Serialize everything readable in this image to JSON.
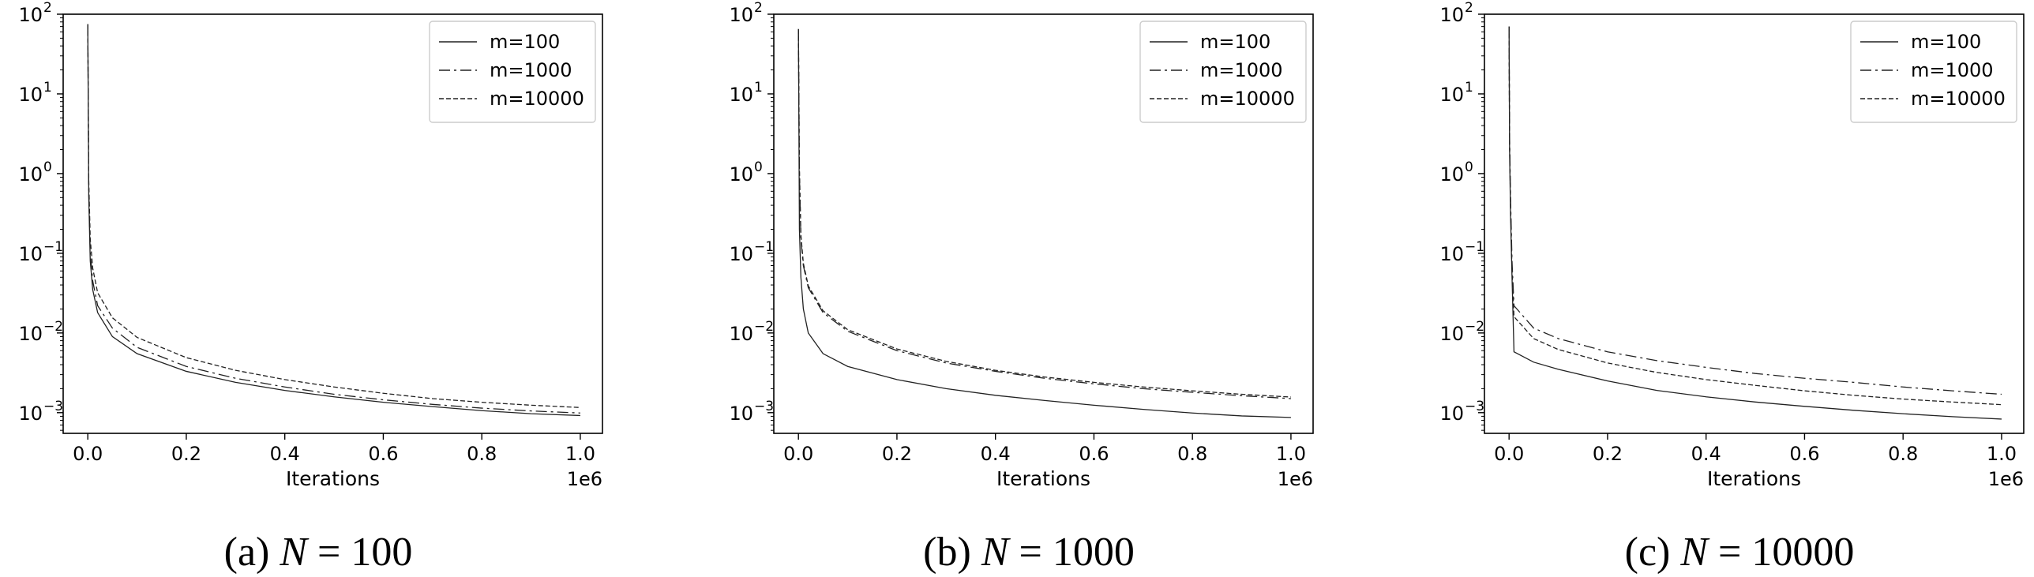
{
  "chart_data": [
    {
      "type": "line",
      "caption": {
        "prefix": "(a) ",
        "var": "N",
        "rest": " = 100"
      },
      "xlabel": "Iterations",
      "x_offset_label": "1e6",
      "yscale": "log",
      "xlim": [
        -0.05,
        1.045
      ],
      "ylim": [
        0.00055,
        100
      ],
      "xticks": [
        0.0,
        0.2,
        0.4,
        0.6,
        0.8,
        1.0
      ],
      "xtick_labels": [
        "0.0",
        "0.2",
        "0.4",
        "0.6",
        "0.8",
        "1.0"
      ],
      "ytick_exponents": [
        "2",
        "1",
        "0",
        "−1",
        "−2",
        "−3"
      ],
      "ytick_values": [
        100,
        10,
        1,
        0.1,
        0.01,
        0.001
      ],
      "legend_position": "top-right",
      "series": [
        {
          "name": "m=100",
          "style": "solid",
          "peak": 75,
          "points": [
            [
              0.0,
              75
            ],
            [
              0.002,
              0.5
            ],
            [
              0.005,
              0.08
            ],
            [
              0.01,
              0.035
            ],
            [
              0.02,
              0.018
            ],
            [
              0.05,
              0.009
            ],
            [
              0.1,
              0.0055
            ],
            [
              0.2,
              0.0033
            ],
            [
              0.3,
              0.0024
            ],
            [
              0.4,
              0.0019
            ],
            [
              0.5,
              0.00158
            ],
            [
              0.6,
              0.00135
            ],
            [
              0.7,
              0.00119
            ],
            [
              0.8,
              0.00106
            ],
            [
              0.9,
              0.00097
            ],
            [
              1.0,
              0.00092
            ]
          ]
        },
        {
          "name": "m=1000",
          "style": "dashdot",
          "peak": 75,
          "points": [
            [
              0.0,
              75
            ],
            [
              0.002,
              0.6
            ],
            [
              0.005,
              0.1
            ],
            [
              0.01,
              0.045
            ],
            [
              0.02,
              0.022
            ],
            [
              0.05,
              0.0115
            ],
            [
              0.1,
              0.0066
            ],
            [
              0.2,
              0.0038
            ],
            [
              0.3,
              0.0027
            ],
            [
              0.4,
              0.0021
            ],
            [
              0.5,
              0.0017
            ],
            [
              0.6,
              0.00145
            ],
            [
              0.7,
              0.00127
            ],
            [
              0.8,
              0.00114
            ],
            [
              0.9,
              0.00105
            ],
            [
              1.0,
              0.00099
            ]
          ]
        },
        {
          "name": "m=10000",
          "style": "dashed",
          "peak": 75,
          "points": [
            [
              0.0,
              75
            ],
            [
              0.002,
              0.8
            ],
            [
              0.005,
              0.15
            ],
            [
              0.01,
              0.065
            ],
            [
              0.02,
              0.032
            ],
            [
              0.05,
              0.0155
            ],
            [
              0.1,
              0.0088
            ],
            [
              0.2,
              0.0049
            ],
            [
              0.3,
              0.0034
            ],
            [
              0.4,
              0.0026
            ],
            [
              0.5,
              0.0021
            ],
            [
              0.6,
              0.00175
            ],
            [
              0.7,
              0.0015
            ],
            [
              0.8,
              0.00135
            ],
            [
              0.9,
              0.00124
            ],
            [
              1.0,
              0.00116
            ]
          ]
        }
      ]
    },
    {
      "type": "line",
      "caption": {
        "prefix": "(b) ",
        "var": "N",
        "rest": " = 1000"
      },
      "xlabel": "Iterations",
      "x_offset_label": "1e6",
      "yscale": "log",
      "xlim": [
        -0.05,
        1.045
      ],
      "ylim": [
        0.00055,
        100
      ],
      "xticks": [
        0.0,
        0.2,
        0.4,
        0.6,
        0.8,
        1.0
      ],
      "xtick_labels": [
        "0.0",
        "0.2",
        "0.4",
        "0.6",
        "0.8",
        "1.0"
      ],
      "ytick_exponents": [
        "2",
        "1",
        "0",
        "−1",
        "−2",
        "−3"
      ],
      "ytick_values": [
        100,
        10,
        1,
        0.1,
        0.01,
        0.001
      ],
      "legend_position": "top-right",
      "series": [
        {
          "name": "m=100",
          "style": "solid",
          "peak": 65,
          "points": [
            [
              0.0,
              65
            ],
            [
              0.002,
              0.2
            ],
            [
              0.005,
              0.05
            ],
            [
              0.01,
              0.02
            ],
            [
              0.02,
              0.01
            ],
            [
              0.05,
              0.0055
            ],
            [
              0.1,
              0.0038
            ],
            [
              0.2,
              0.0026
            ],
            [
              0.3,
              0.002
            ],
            [
              0.4,
              0.00165
            ],
            [
              0.5,
              0.00142
            ],
            [
              0.6,
              0.00124
            ],
            [
              0.7,
              0.0011
            ],
            [
              0.8,
              0.00099
            ],
            [
              0.9,
              0.00091
            ],
            [
              1.0,
              0.00087
            ]
          ]
        },
        {
          "name": "m=1000",
          "style": "dashdot",
          "peak": 65,
          "points": [
            [
              0.0,
              65
            ],
            [
              0.002,
              1.0
            ],
            [
              0.005,
              0.15
            ],
            [
              0.01,
              0.07
            ],
            [
              0.02,
              0.037
            ],
            [
              0.05,
              0.018
            ],
            [
              0.1,
              0.0105
            ],
            [
              0.2,
              0.006
            ],
            [
              0.3,
              0.0042
            ],
            [
              0.4,
              0.0033
            ],
            [
              0.5,
              0.0027
            ],
            [
              0.6,
              0.0023
            ],
            [
              0.7,
              0.002
            ],
            [
              0.8,
              0.0018
            ],
            [
              0.9,
              0.00163
            ],
            [
              1.0,
              0.0015
            ]
          ]
        },
        {
          "name": "m=10000",
          "style": "dashed",
          "peak": 65,
          "points": [
            [
              0.0,
              65
            ],
            [
              0.002,
              1.2
            ],
            [
              0.005,
              0.17
            ],
            [
              0.01,
              0.075
            ],
            [
              0.02,
              0.039
            ],
            [
              0.05,
              0.019
            ],
            [
              0.1,
              0.011
            ],
            [
              0.2,
              0.0063
            ],
            [
              0.3,
              0.0044
            ],
            [
              0.4,
              0.0034
            ],
            [
              0.5,
              0.0028
            ],
            [
              0.6,
              0.0024
            ],
            [
              0.7,
              0.0021
            ],
            [
              0.8,
              0.00188
            ],
            [
              0.9,
              0.0017
            ],
            [
              1.0,
              0.00157
            ]
          ]
        }
      ]
    },
    {
      "type": "line",
      "caption": {
        "prefix": "(c) ",
        "var": "N",
        "rest": " = 10000"
      },
      "xlabel": "Iterations",
      "x_offset_label": "1e6",
      "yscale": "log",
      "xlim": [
        -0.05,
        1.045
      ],
      "ylim": [
        0.00055,
        100
      ],
      "xticks": [
        0.0,
        0.2,
        0.4,
        0.6,
        0.8,
        1.0
      ],
      "xtick_labels": [
        "0.0",
        "0.2",
        "0.4",
        "0.6",
        "0.8",
        "1.0"
      ],
      "ytick_exponents": [
        "2",
        "1",
        "0",
        "−1",
        "−2",
        "−3"
      ],
      "ytick_values": [
        100,
        10,
        1,
        0.1,
        0.01,
        0.001
      ],
      "legend_position": "top-right",
      "series": [
        {
          "name": "m=100",
          "style": "solid",
          "peak": 70,
          "points": [
            [
              0.0,
              70
            ],
            [
              0.001,
              2.0
            ],
            [
              0.003,
              0.3
            ],
            [
              0.006,
              0.05
            ],
            [
              0.01,
              0.0058
            ],
            [
              0.05,
              0.0043
            ],
            [
              0.1,
              0.0035
            ],
            [
              0.2,
              0.0025
            ],
            [
              0.3,
              0.0019
            ],
            [
              0.4,
              0.00158
            ],
            [
              0.5,
              0.00136
            ],
            [
              0.6,
              0.0012
            ],
            [
              0.7,
              0.00107
            ],
            [
              0.8,
              0.00097
            ],
            [
              0.9,
              0.00089
            ],
            [
              1.0,
              0.00083
            ]
          ]
        },
        {
          "name": "m=1000",
          "style": "dashdot",
          "peak": 70,
          "points": [
            [
              0.0,
              70
            ],
            [
              0.001,
              3.0
            ],
            [
              0.003,
              0.5
            ],
            [
              0.006,
              0.08
            ],
            [
              0.01,
              0.022
            ],
            [
              0.05,
              0.0115
            ],
            [
              0.1,
              0.0085
            ],
            [
              0.2,
              0.0058
            ],
            [
              0.3,
              0.0045
            ],
            [
              0.4,
              0.0037
            ],
            [
              0.5,
              0.0031
            ],
            [
              0.6,
              0.0027
            ],
            [
              0.7,
              0.0024
            ],
            [
              0.8,
              0.0021
            ],
            [
              0.9,
              0.00188
            ],
            [
              1.0,
              0.0017
            ]
          ]
        },
        {
          "name": "m=10000",
          "style": "dashed",
          "peak": 70,
          "points": [
            [
              0.0,
              70
            ],
            [
              0.001,
              2.5
            ],
            [
              0.003,
              0.4
            ],
            [
              0.006,
              0.06
            ],
            [
              0.01,
              0.016
            ],
            [
              0.05,
              0.0085
            ],
            [
              0.1,
              0.0062
            ],
            [
              0.2,
              0.0042
            ],
            [
              0.3,
              0.0032
            ],
            [
              0.4,
              0.0026
            ],
            [
              0.5,
              0.0022
            ],
            [
              0.6,
              0.00188
            ],
            [
              0.7,
              0.00165
            ],
            [
              0.8,
              0.00148
            ],
            [
              0.9,
              0.00136
            ],
            [
              1.0,
              0.00126
            ]
          ]
        }
      ]
    }
  ]
}
